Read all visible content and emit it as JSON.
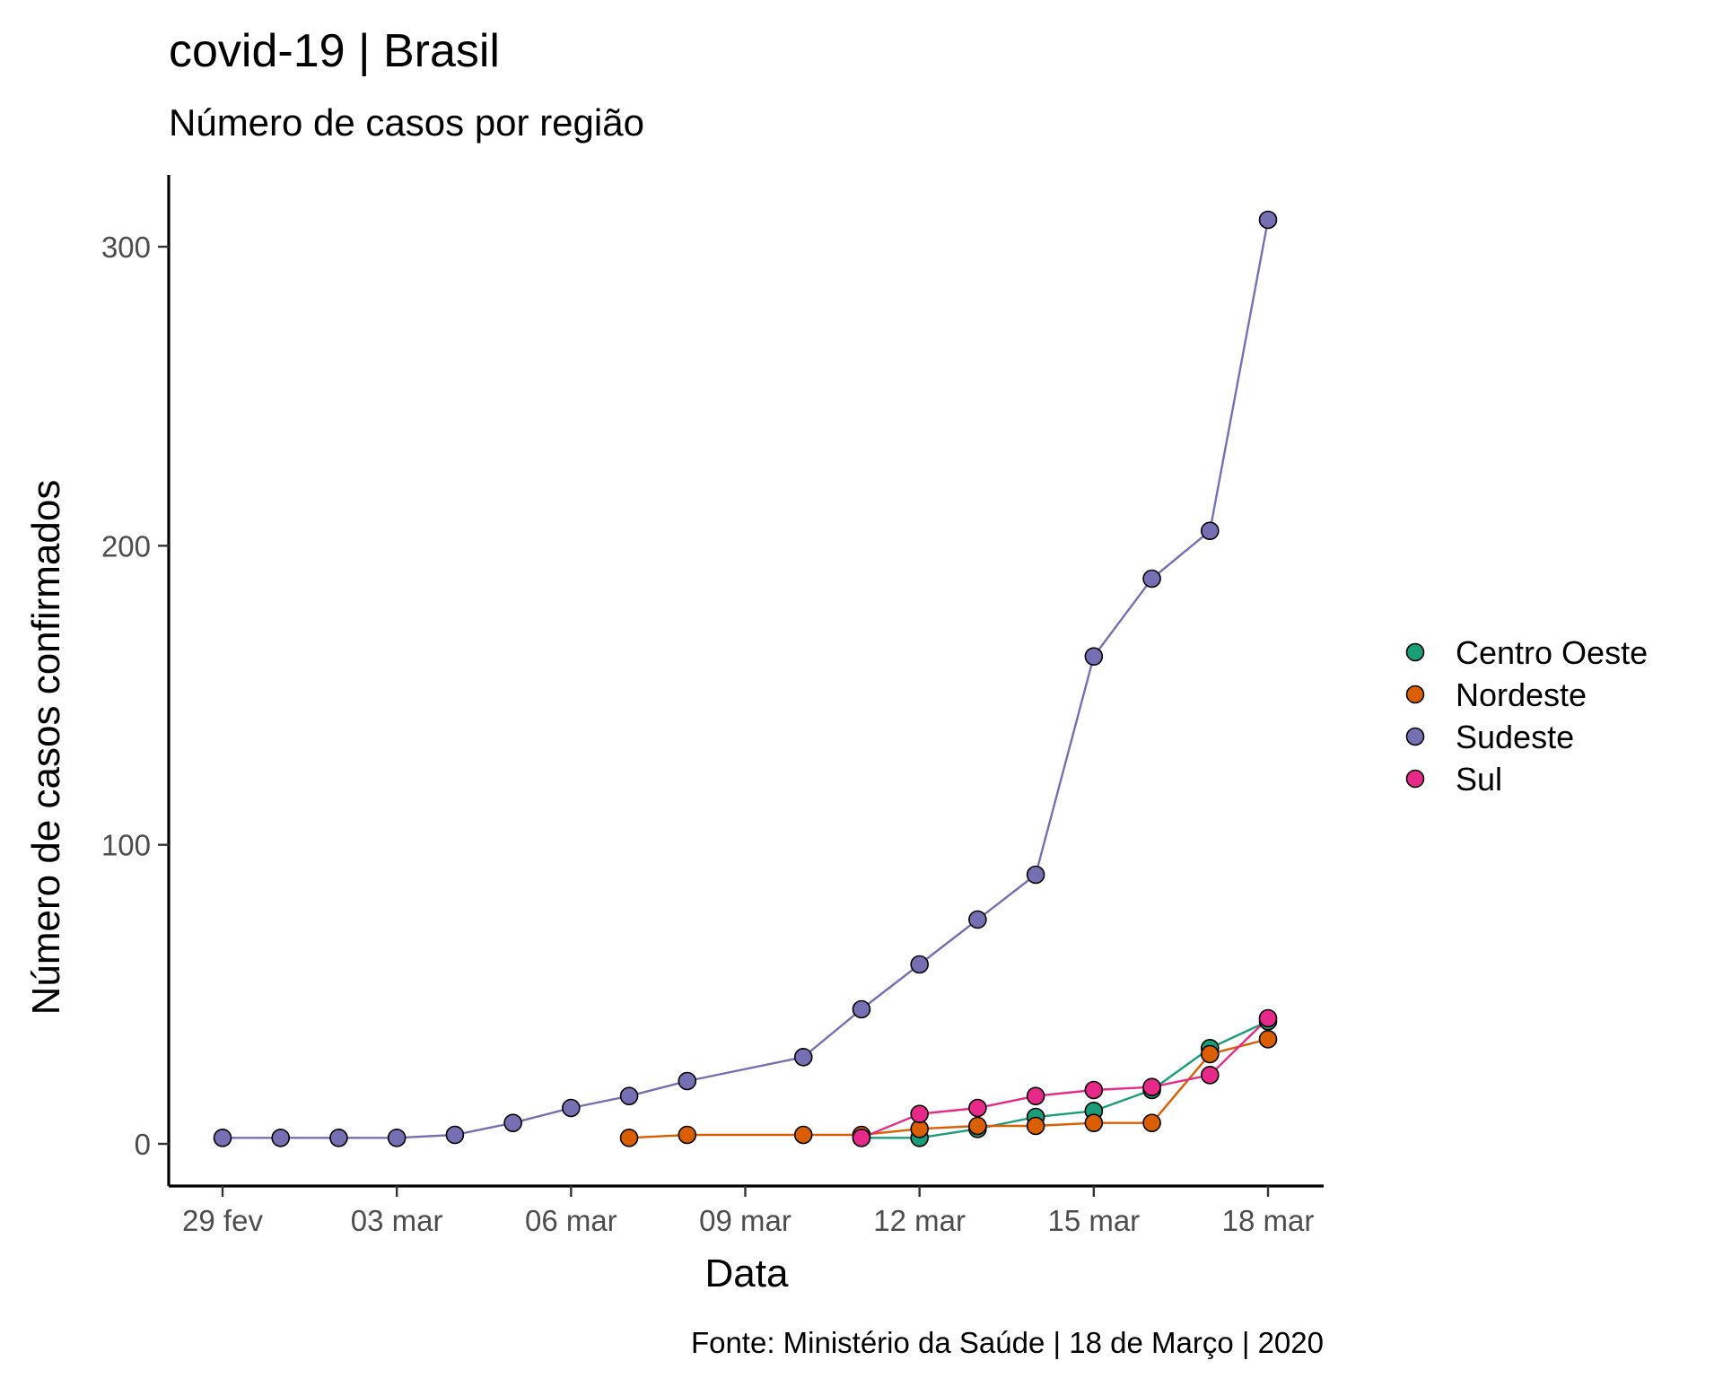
{
  "chart_data": {
    "type": "line",
    "title": "covid-19 | Brasil",
    "subtitle": "Número de casos por região",
    "xlabel": "Data",
    "ylabel": "Número de casos confirmados",
    "caption": "Fonte: Ministério da Saúde | 18 de Março | 2020",
    "x_ticks": [
      {
        "date": "2020-02-29",
        "label": "29 fev"
      },
      {
        "date": "2020-03-03",
        "label": "03 mar"
      },
      {
        "date": "2020-03-06",
        "label": "06 mar"
      },
      {
        "date": "2020-03-09",
        "label": "09 mar"
      },
      {
        "date": "2020-03-12",
        "label": "12 mar"
      },
      {
        "date": "2020-03-15",
        "label": "15 mar"
      },
      {
        "date": "2020-03-18",
        "label": "18 mar"
      }
    ],
    "y_ticks": [
      0,
      100,
      200,
      300
    ],
    "xlim": [
      "2020-02-28",
      "2020-03-18"
    ],
    "ylim": [
      -12,
      324
    ],
    "grid": false,
    "legend_position": "right",
    "series": [
      {
        "name": "Centro Oeste",
        "color": "#1b9e77",
        "points": [
          {
            "x": "2020-03-11",
            "y": 2
          },
          {
            "x": "2020-03-12",
            "y": 2
          },
          {
            "x": "2020-03-13",
            "y": 5
          },
          {
            "x": "2020-03-14",
            "y": 9
          },
          {
            "x": "2020-03-15",
            "y": 11
          },
          {
            "x": "2020-03-16",
            "y": 18
          },
          {
            "x": "2020-03-17",
            "y": 32
          },
          {
            "x": "2020-03-18",
            "y": 41
          }
        ]
      },
      {
        "name": "Nordeste",
        "color": "#d95f02",
        "points": [
          {
            "x": "2020-03-07",
            "y": 2
          },
          {
            "x": "2020-03-08",
            "y": 3
          },
          {
            "x": "2020-03-10",
            "y": 3
          },
          {
            "x": "2020-03-11",
            "y": 3
          },
          {
            "x": "2020-03-12",
            "y": 5
          },
          {
            "x": "2020-03-13",
            "y": 6
          },
          {
            "x": "2020-03-14",
            "y": 6
          },
          {
            "x": "2020-03-15",
            "y": 7
          },
          {
            "x": "2020-03-16",
            "y": 7
          },
          {
            "x": "2020-03-17",
            "y": 30
          },
          {
            "x": "2020-03-18",
            "y": 35
          }
        ]
      },
      {
        "name": "Sudeste",
        "color": "#7570b3",
        "points": [
          {
            "x": "2020-02-29",
            "y": 2
          },
          {
            "x": "2020-03-01",
            "y": 2
          },
          {
            "x": "2020-03-02",
            "y": 2
          },
          {
            "x": "2020-03-03",
            "y": 2
          },
          {
            "x": "2020-03-04",
            "y": 3
          },
          {
            "x": "2020-03-05",
            "y": 7
          },
          {
            "x": "2020-03-06",
            "y": 12
          },
          {
            "x": "2020-03-07",
            "y": 16
          },
          {
            "x": "2020-03-08",
            "y": 21
          },
          {
            "x": "2020-03-10",
            "y": 29
          },
          {
            "x": "2020-03-11",
            "y": 45
          },
          {
            "x": "2020-03-12",
            "y": 60
          },
          {
            "x": "2020-03-13",
            "y": 75
          },
          {
            "x": "2020-03-14",
            "y": 90
          },
          {
            "x": "2020-03-15",
            "y": 163
          },
          {
            "x": "2020-03-16",
            "y": 189
          },
          {
            "x": "2020-03-17",
            "y": 205
          },
          {
            "x": "2020-03-18",
            "y": 309
          }
        ]
      },
      {
        "name": "Sul",
        "color": "#e7298a",
        "points": [
          {
            "x": "2020-03-11",
            "y": 2
          },
          {
            "x": "2020-03-12",
            "y": 10
          },
          {
            "x": "2020-03-13",
            "y": 12
          },
          {
            "x": "2020-03-14",
            "y": 16
          },
          {
            "x": "2020-03-15",
            "y": 18
          },
          {
            "x": "2020-03-16",
            "y": 19
          },
          {
            "x": "2020-03-17",
            "y": 23
          },
          {
            "x": "2020-03-18",
            "y": 42
          }
        ]
      }
    ]
  }
}
